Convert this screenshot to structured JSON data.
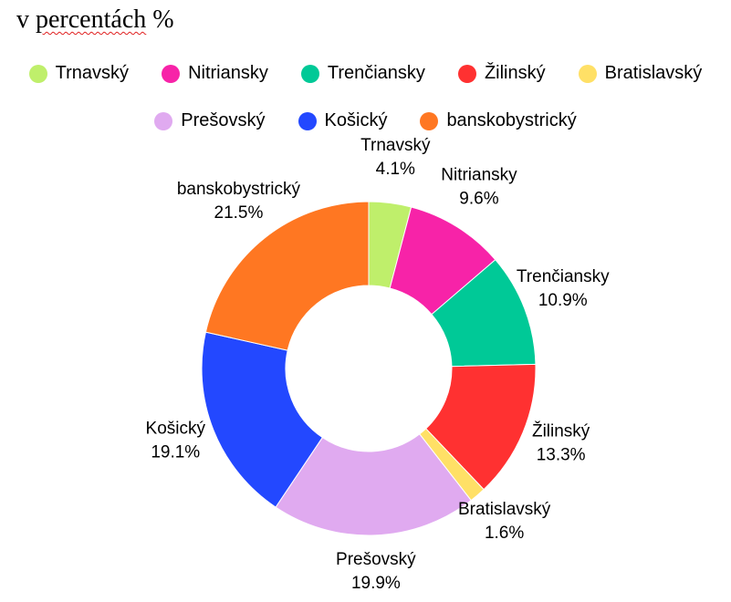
{
  "title": {
    "prefix": "v ",
    "underlined": "percentách",
    "suffix": " %"
  },
  "chart_data": {
    "type": "pie",
    "donut": true,
    "legend_position": "top",
    "slices": [
      {
        "label": "Trnavský",
        "value": 4.1,
        "value_label": "4.1%",
        "color": "#bfef6b"
      },
      {
        "label": "Nitriansky",
        "value": 9.6,
        "value_label": "9.6%",
        "color": "#f723a8"
      },
      {
        "label": "Trenčiansky",
        "value": 10.9,
        "value_label": "10.9%",
        "color": "#00c997"
      },
      {
        "label": "Žilinský",
        "value": 13.3,
        "value_label": "13.3%",
        "color": "#ff3131"
      },
      {
        "label": "Bratislavský",
        "value": 1.6,
        "value_label": "1.6%",
        "color": "#ffe066"
      },
      {
        "label": "Prešovský",
        "value": 19.9,
        "value_label": "19.9%",
        "color": "#e0aaf0"
      },
      {
        "label": "Košický",
        "value": 19.1,
        "value_label": "19.1%",
        "color": "#2348ff"
      },
      {
        "label": "banskobystrický",
        "value": 21.5,
        "value_label": "21.5%",
        "color": "#ff7722"
      }
    ]
  }
}
